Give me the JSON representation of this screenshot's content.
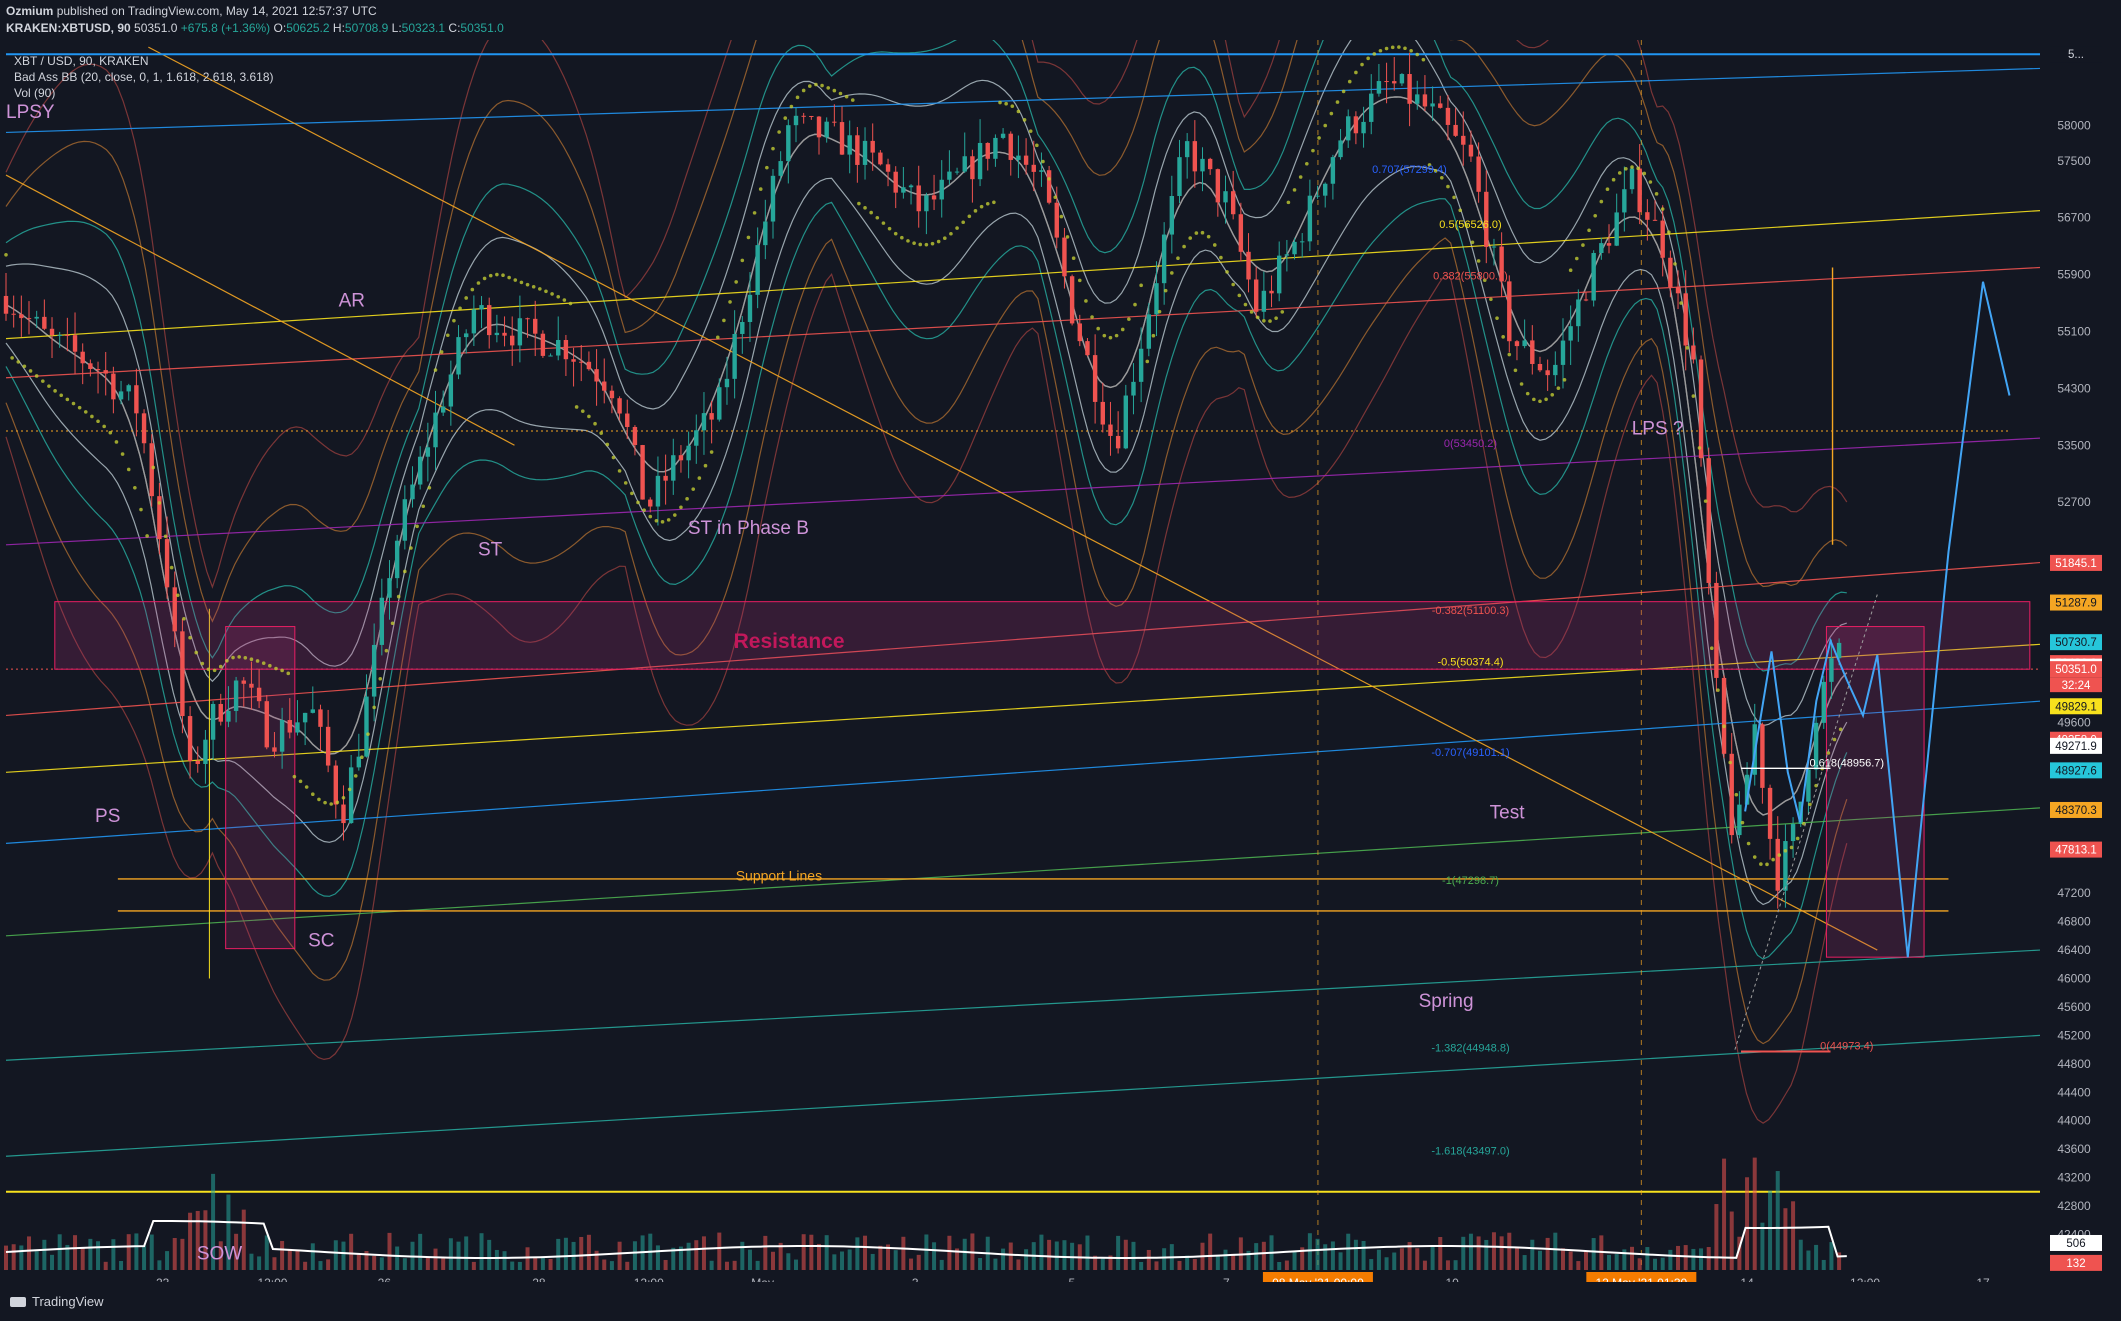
{
  "header": {
    "author": "Ozmium",
    "published": "published on TradingView.com, May 14, 2021 12:57:37 UTC",
    "symbol_line": "KRAKEN:XBTUSD, 90",
    "price": "50351.0",
    "change": "+675.8 (+1.36%)",
    "ohlc": {
      "o_label": "O:",
      "o": "50625.2",
      "h_label": "H:",
      "h": "50708.9",
      "l_label": "L:",
      "l": "50323.1",
      "c_label": "C:",
      "c": "50351.0"
    }
  },
  "legend": {
    "title": "XBT / USD, 90, KRAKEN",
    "indicator": "Bad Ass BB (20, close, 0, 1, 1.618, 2.618, 3.618)",
    "volume": "Vol (90)"
  },
  "footer": {
    "brand": "TradingView"
  },
  "colors": {
    "background": "#131722",
    "up": "#26a69a",
    "down": "#ef5350",
    "annotation": "#ce93d8",
    "resistance": "#b0307a",
    "support": "#f5a623",
    "fib_yellow": "#f7e11d"
  },
  "chart_data": {
    "type": "candlestick",
    "title": "XBT / USD, 90, KRAKEN",
    "x_ticks": [
      "23",
      "12:00",
      "26",
      "28",
      "12:00",
      "May",
      "3",
      "5",
      "7",
      "08 May '21  00:00",
      "10",
      "12 May '21  01:30",
      "14",
      "12:00",
      "17"
    ],
    "y_ticks": [
      58000,
      57500,
      56700,
      55900,
      55100,
      54300,
      53500,
      52700,
      49600,
      47200,
      46800,
      46400,
      46000,
      45600,
      45200,
      44800,
      44400,
      44000,
      43600,
      43200,
      42800,
      42400,
      42000
    ],
    "y_range": [
      41900,
      59200
    ],
    "price_tags": [
      {
        "value": "5...",
        "bg": "#131722",
        "fg": "#d1d4dc",
        "y": 59000
      },
      {
        "value": "51845.1",
        "bg": "#ef5350",
        "fg": "#ffffff",
        "y": 51845.1
      },
      {
        "value": "51287.9",
        "bg": "#f5a623",
        "fg": "#131722",
        "y": 51287.9
      },
      {
        "value": "50730.7",
        "bg": "#26c6da",
        "fg": "#131722",
        "y": 50730.7
      },
      {
        "value": "50436.0",
        "bg": "#ef5350",
        "fg": "#ffffff",
        "y": 50436.0
      },
      {
        "value": "50386.3",
        "bg": "#ffffff",
        "fg": "#131722",
        "y": 50386.3
      },
      {
        "value": "50351.0",
        "bg": "#ef5350",
        "fg": "#ffffff",
        "y": 50351.0,
        "extra": "32:24"
      },
      {
        "value": "49829.1",
        "bg": "#f7e11d",
        "fg": "#131722",
        "y": 49829.1
      },
      {
        "value": "49358.0",
        "bg": "#ef5350",
        "fg": "#ffffff",
        "y": 49358.0
      },
      {
        "value": "49271.9",
        "bg": "#ffffff",
        "fg": "#131722",
        "y": 49271.9
      },
      {
        "value": "48927.6",
        "bg": "#26c6da",
        "fg": "#131722",
        "y": 48927.6
      },
      {
        "value": "48370.3",
        "bg": "#f5a623",
        "fg": "#131722",
        "y": 48370.3
      },
      {
        "value": "47813.1",
        "bg": "#ef5350",
        "fg": "#ffffff",
        "y": 47813.1
      },
      {
        "value": "506",
        "bg": "#ffffff",
        "fg": "#131722",
        "y": 42280
      },
      {
        "value": "132",
        "bg": "#ef5350",
        "fg": "#ffffff",
        "y": 42000
      }
    ],
    "annotations": [
      {
        "text": "LPSY",
        "t": 0.0,
        "p": 58100
      },
      {
        "text": "AR",
        "t": 0.17,
        "p": 55450
      },
      {
        "text": "ST",
        "t": 0.238,
        "p": 51950
      },
      {
        "text": "ST in Phase B",
        "t": 0.365,
        "p": 52250
      },
      {
        "text": "Resistance",
        "t": 0.385,
        "p": 50650
      },
      {
        "text": "PS",
        "t": 0.05,
        "p": 48200
      },
      {
        "text": "SC",
        "t": 0.155,
        "p": 46450
      },
      {
        "text": "SOW",
        "t": 0.105,
        "p": 42050
      },
      {
        "text": "Test",
        "t": 0.738,
        "p": 48250
      },
      {
        "text": "Spring",
        "t": 0.708,
        "p": 45600
      },
      {
        "text": "LPS ?",
        "t": 0.812,
        "p": 53650
      },
      {
        "text": "Support Lines",
        "t": 0.38,
        "p": 47380
      }
    ],
    "fib_labels": [
      {
        "text": "0.5(56526.0)",
        "p": 56526,
        "color": "#f7e11d"
      },
      {
        "text": "0.382(55800.1)",
        "p": 55800,
        "color": "#ef5350"
      },
      {
        "text": "0(53450.2)",
        "p": 53450,
        "color": "#9c27b0"
      },
      {
        "text": "-0.382(51100.3)",
        "p": 51100,
        "color": "#ef5350"
      },
      {
        "text": "-0.5(50374.4)",
        "p": 50374,
        "color": "#f7e11d"
      },
      {
        "text": "-0.707(49101.1)",
        "p": 49101,
        "color": "#2962ff"
      },
      {
        "text": "-1(47298.7)",
        "p": 47298,
        "color": "#4caf50"
      },
      {
        "text": "-1.382(44948.8)",
        "p": 44948,
        "color": "#26a69a"
      },
      {
        "text": "-1.618(43497.0)",
        "p": 43497,
        "color": "#26a69a"
      },
      {
        "text": "0.618(48956.7)",
        "p": 48956,
        "color": "#ffffff"
      },
      {
        "text": "0(44973.4)",
        "p": 44973,
        "color": "#ef5350"
      },
      {
        "text": "0.707(57299.4)",
        "p": 57299,
        "color": "#2962ff"
      }
    ],
    "support_levels": [
      47400,
      46950
    ],
    "horizontal_levels": [
      59000,
      43000
    ],
    "resistance_box": {
      "top": 51300,
      "bottom": 50350
    },
    "close_price": 50351.0,
    "volume_baseline": 42000,
    "grid": false,
    "legend_position": "top-left"
  }
}
